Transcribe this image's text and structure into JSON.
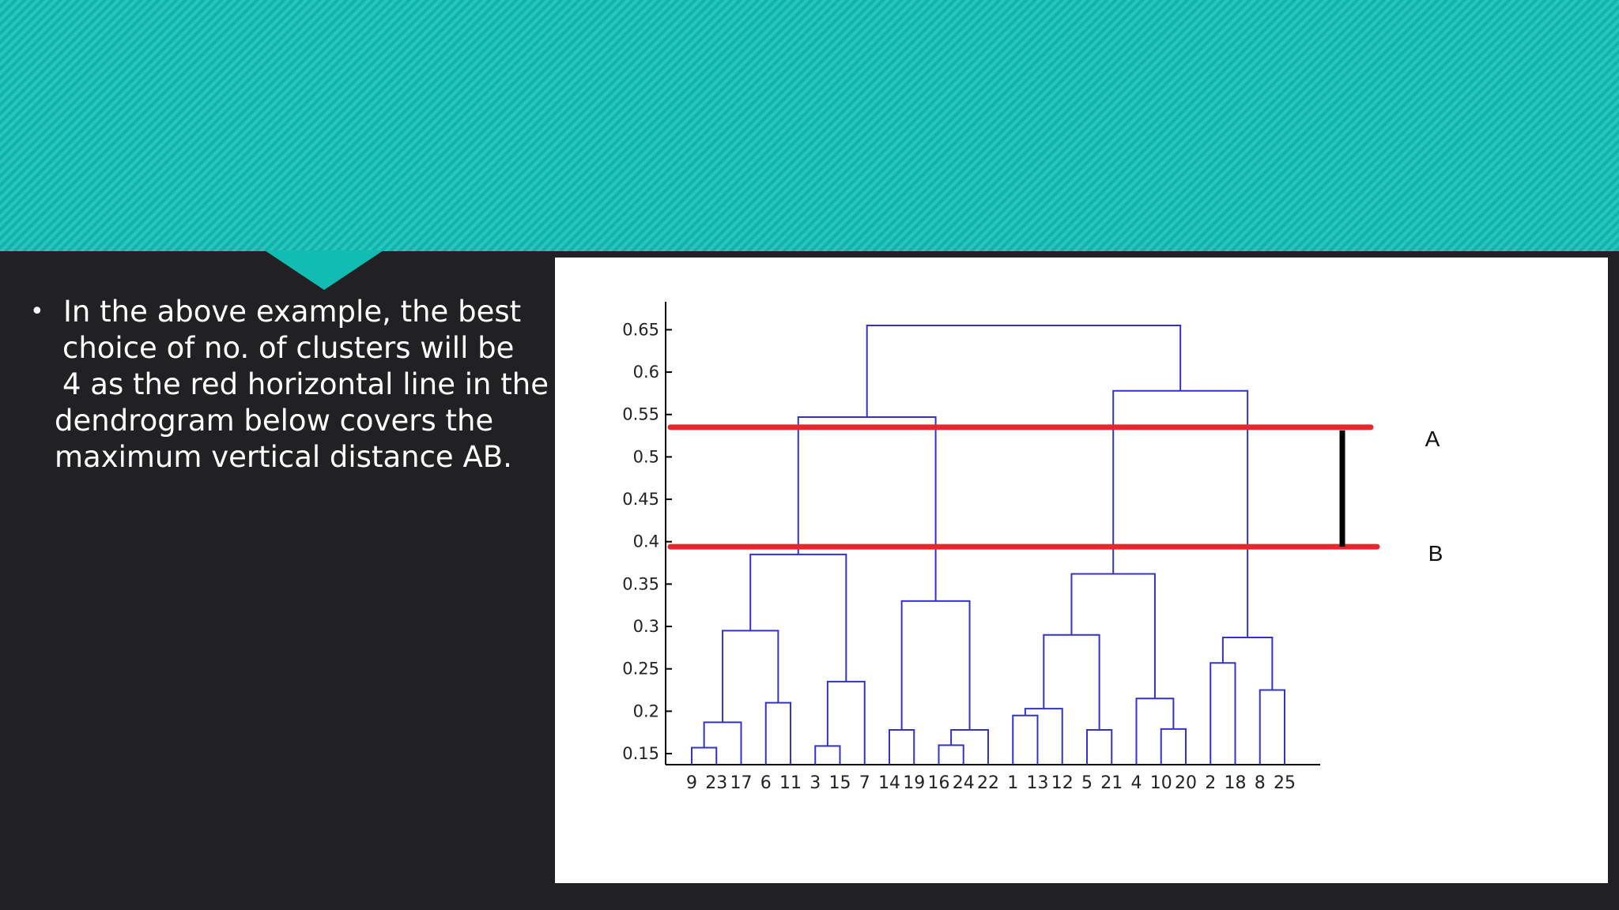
{
  "slide": {
    "bullet_symbol": "•",
    "bullet_lines": [
      " In the above example, the best",
      "choice of no. of clusters will be",
      " 4 as the red horizontal line in the",
      "dendrogram below covers the",
      "maximum vertical distance AB."
    ]
  },
  "chart_data": {
    "type": "dendrogram",
    "y_ticks": [
      "0.15",
      "0.2",
      "0.25",
      "0.3",
      "0.35",
      "0.4",
      "0.45",
      "0.5",
      "0.55",
      "0.6",
      "0.65"
    ],
    "leaf_labels": [
      "9",
      "23",
      "17",
      "6",
      "11",
      "3",
      "15",
      "7",
      "14",
      "19",
      "16",
      "24",
      "22",
      "1",
      "13",
      "12",
      "5",
      "21",
      "4",
      "10",
      "20",
      "2",
      "18",
      "8",
      "25"
    ],
    "branch_color": "#3333cc",
    "merges": [
      {
        "id": "M1",
        "children": [
          "9",
          "23"
        ],
        "height": 0.157
      },
      {
        "id": "M2",
        "children": [
          "M1",
          "17"
        ],
        "height": 0.187
      },
      {
        "id": "M3",
        "children": [
          "6",
          "11"
        ],
        "height": 0.21
      },
      {
        "id": "M4",
        "children": [
          "M2",
          "M3"
        ],
        "height": 0.295
      },
      {
        "id": "M5",
        "children": [
          "3",
          "15"
        ],
        "height": 0.159
      },
      {
        "id": "M6",
        "children": [
          "M5",
          "7"
        ],
        "height": 0.235
      },
      {
        "id": "M7",
        "children": [
          "M4",
          "M6"
        ],
        "height": 0.385
      },
      {
        "id": "M8",
        "children": [
          "14",
          "19"
        ],
        "height": 0.178
      },
      {
        "id": "M9",
        "children": [
          "16",
          "24"
        ],
        "height": 0.16
      },
      {
        "id": "M10",
        "children": [
          "M9",
          "22"
        ],
        "height": 0.178
      },
      {
        "id": "M11",
        "children": [
          "M8",
          "M10"
        ],
        "height": 0.33
      },
      {
        "id": "M12",
        "children": [
          "M7",
          "M11"
        ],
        "height": 0.547
      },
      {
        "id": "M13",
        "children": [
          "1",
          "13"
        ],
        "height": 0.195
      },
      {
        "id": "M14",
        "children": [
          "M13",
          "12"
        ],
        "height": 0.203
      },
      {
        "id": "M15",
        "children": [
          "5",
          "21"
        ],
        "height": 0.178
      },
      {
        "id": "M16",
        "children": [
          "M14",
          "M15"
        ],
        "height": 0.29
      },
      {
        "id": "M17",
        "children": [
          "10",
          "20"
        ],
        "height": 0.179
      },
      {
        "id": "M18",
        "children": [
          "4",
          "M17"
        ],
        "height": 0.215
      },
      {
        "id": "M19",
        "children": [
          "M16",
          "M18"
        ],
        "height": 0.362
      },
      {
        "id": "M20",
        "children": [
          "2",
          "18"
        ],
        "height": 0.257
      },
      {
        "id": "M21",
        "children": [
          "8",
          "25"
        ],
        "height": 0.225
      },
      {
        "id": "M22",
        "children": [
          "M20",
          "M21"
        ],
        "height": 0.287
      },
      {
        "id": "M23",
        "children": [
          "M19",
          "M22"
        ],
        "height": 0.578
      },
      {
        "id": "M24",
        "children": [
          "M12",
          "M23"
        ],
        "height": 0.655
      }
    ],
    "cut_lines": [
      {
        "label": "A",
        "y": 0.535,
        "color": "#e8262b"
      },
      {
        "label": "B",
        "y": 0.394,
        "color": "#e8262b"
      }
    ],
    "distance_marker": {
      "from": "A",
      "to": "B",
      "color": "#000000"
    }
  }
}
